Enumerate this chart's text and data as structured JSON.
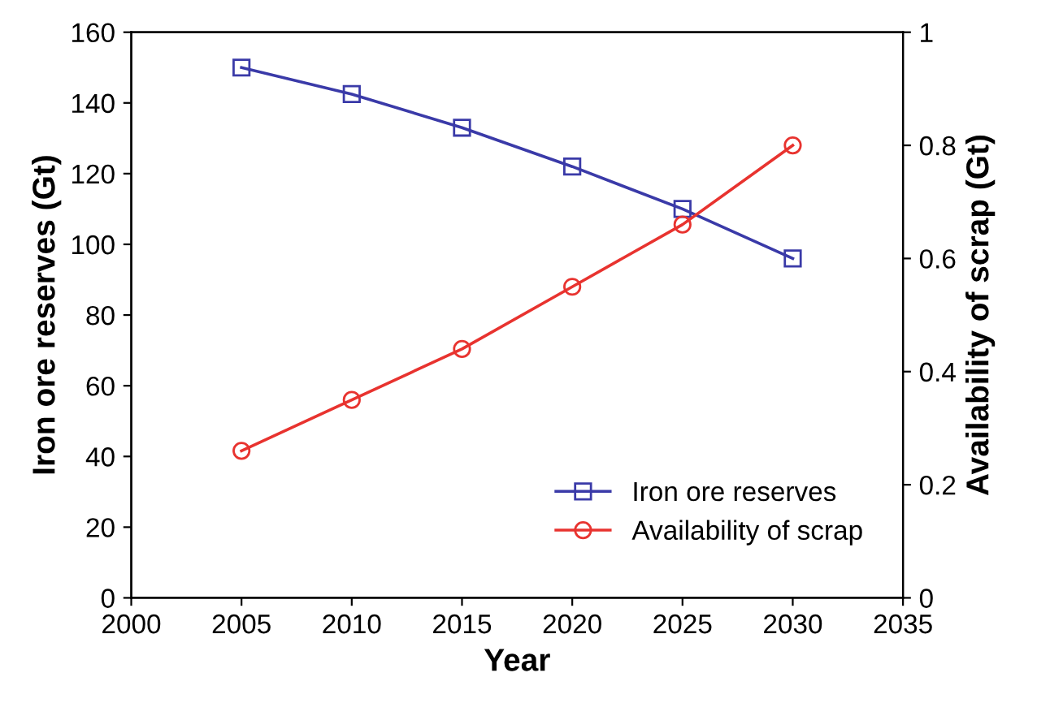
{
  "chart_data": {
    "type": "line",
    "xlabel": "Year",
    "ylabel": "Iron ore reserves (Gt)",
    "y2label": "Availability of scrap (Gt)",
    "x": [
      2005,
      2010,
      2015,
      2020,
      2025,
      2030
    ],
    "series": [
      {
        "name": "Iron ore reserves",
        "color": "#3a3aa8",
        "marker": "square",
        "values": [
          150,
          142.5,
          133,
          122,
          110,
          96
        ]
      },
      {
        "name": "Availability of scrap",
        "color": "#e8332f",
        "marker": "circle",
        "axis": "y2",
        "values": [
          0.26,
          0.35,
          0.44,
          0.55,
          0.66,
          0.8
        ]
      }
    ],
    "xlim": [
      2000,
      2035
    ],
    "xticks": [
      2000,
      2005,
      2010,
      2015,
      2020,
      2025,
      2030,
      2035
    ],
    "ylim": [
      0,
      160
    ],
    "yticks": [
      0,
      20,
      40,
      60,
      80,
      100,
      120,
      140,
      160
    ],
    "y2lim": [
      0,
      1
    ],
    "y2ticks": [
      0,
      0.2,
      0.4,
      0.6,
      0.8,
      1
    ],
    "grid": false,
    "legend": "bottom right",
    "line_style": "solid"
  }
}
